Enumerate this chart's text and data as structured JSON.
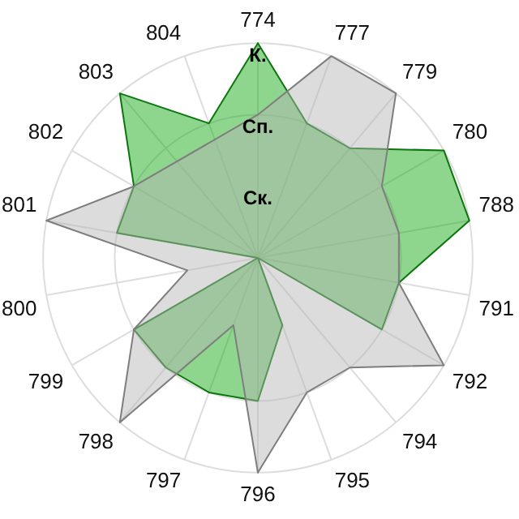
{
  "chart_data": {
    "type": "radar",
    "categories": [
      "774",
      "777",
      "779",
      "780",
      "788",
      "791",
      "792",
      "794",
      "795",
      "796",
      "797",
      "798",
      "799",
      "800",
      "801",
      "802",
      "803",
      "804"
    ],
    "series": [
      {
        "color": "#b4b4b4",
        "values": [
          2,
          3,
          3,
          2,
          2,
          2,
          3,
          2,
          2,
          3,
          1,
          3,
          2,
          1,
          3,
          2,
          null,
          null
        ]
      },
      {
        "color": "#0fa80f",
        "values": [
          3,
          2,
          2,
          3,
          3,
          2,
          2,
          0,
          1,
          2,
          2,
          2,
          2,
          0,
          2,
          2,
          3,
          2
        ]
      }
    ],
    "ylim": [
      0,
      3
    ],
    "yticks": [
      {
        "value": 1,
        "label": "Ск."
      },
      {
        "value": 2,
        "label": "Сп."
      },
      {
        "value": 3,
        "label": "К."
      }
    ],
    "grid": true,
    "legend": false,
    "marker": "none"
  }
}
